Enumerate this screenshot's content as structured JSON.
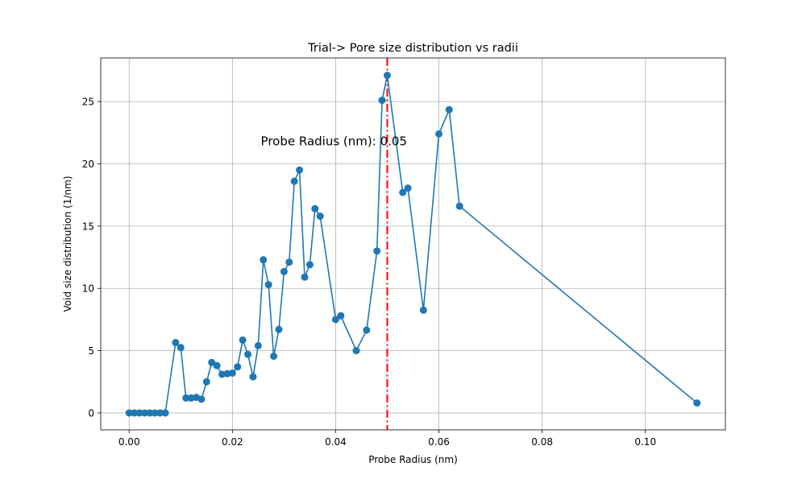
{
  "chart_data": {
    "type": "line",
    "title": "Trial-> Pore size distribution vs radii",
    "xlabel": "Probe Radius (nm)",
    "ylabel": "Void size distribution (1/nm)",
    "xlim": [
      -0.0055,
      0.1155
    ],
    "ylim": [
      -1.36,
      28.5
    ],
    "xticks": [
      0.0,
      0.02,
      0.04,
      0.06,
      0.08,
      0.1
    ],
    "xtick_labels": [
      "0.00",
      "0.02",
      "0.04",
      "0.06",
      "0.08",
      "0.10"
    ],
    "yticks": [
      0,
      5,
      10,
      15,
      20,
      25
    ],
    "ytick_labels": [
      "0",
      "5",
      "10",
      "15",
      "20",
      "25"
    ],
    "grid": true,
    "color": "#1f77b4",
    "series": [
      {
        "x": [
          0.0,
          0.001,
          0.002,
          0.003,
          0.004,
          0.005,
          0.006,
          0.007,
          0.009,
          0.01,
          0.011,
          0.012,
          0.013,
          0.014,
          0.015,
          0.016,
          0.017,
          0.018,
          0.019,
          0.02,
          0.021,
          0.022,
          0.023,
          0.024,
          0.025,
          0.026,
          0.027,
          0.028,
          0.029,
          0.03,
          0.031,
          0.032,
          0.033,
          0.034,
          0.035,
          0.036,
          0.037,
          0.04,
          0.041,
          0.044,
          0.046,
          0.048,
          0.049,
          0.05,
          0.053,
          0.054,
          0.057,
          0.06,
          0.062,
          0.064,
          0.11
        ],
        "y": [
          0.0,
          0.0,
          0.0,
          0.0,
          0.0,
          0.0,
          0.0,
          0.0,
          5.65,
          5.25,
          1.2,
          1.2,
          1.25,
          1.1,
          2.5,
          4.05,
          3.8,
          3.1,
          3.15,
          3.2,
          3.7,
          5.85,
          4.7,
          2.9,
          5.4,
          12.3,
          10.3,
          4.55,
          6.7,
          11.35,
          12.1,
          18.6,
          19.5,
          10.9,
          11.9,
          16.4,
          15.8,
          7.5,
          7.8,
          5.0,
          6.65,
          13.0,
          25.1,
          27.1,
          17.7,
          18.05,
          8.25,
          22.4,
          24.35,
          16.6,
          0.8
        ]
      }
    ],
    "vline": {
      "x": 0.05,
      "color": "#ff0000",
      "style": "dash-dot"
    },
    "annotation": {
      "text": "Probe Radius (nm):  0.05",
      "x": 0.0255,
      "y": 21.5
    }
  }
}
